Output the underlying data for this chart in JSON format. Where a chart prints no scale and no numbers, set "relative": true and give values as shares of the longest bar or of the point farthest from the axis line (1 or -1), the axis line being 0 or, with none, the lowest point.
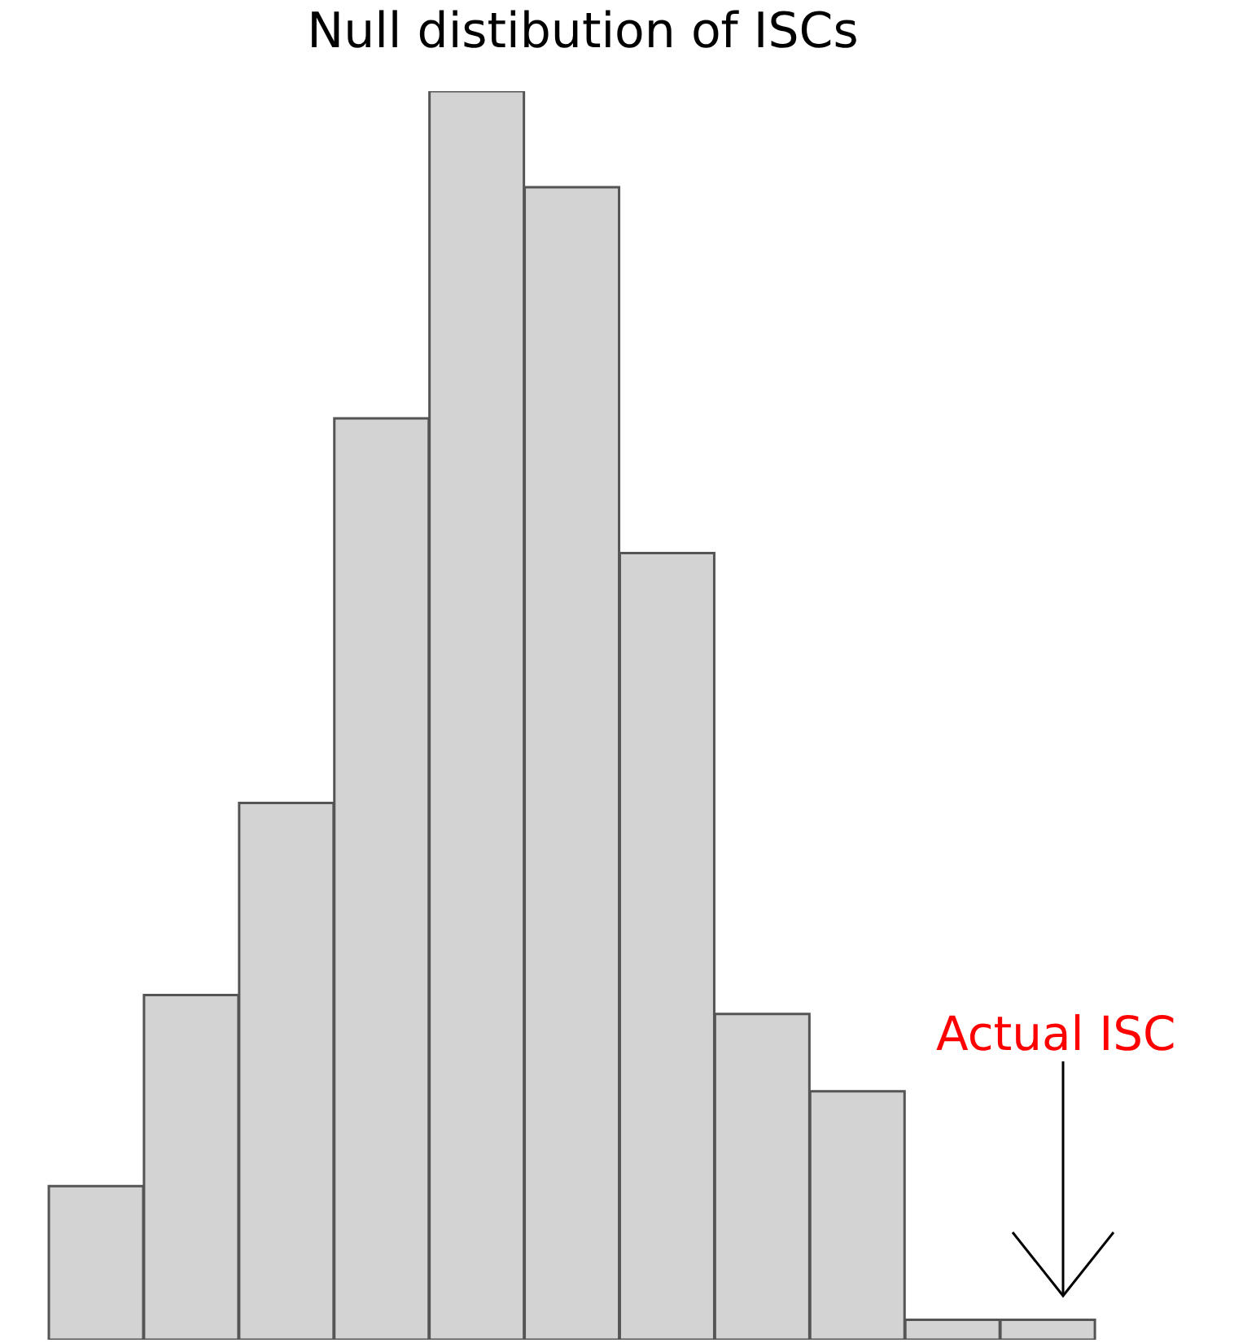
{
  "chart_data": {
    "type": "bar",
    "title": "Null distibution of ISCs",
    "relative": true,
    "categories": [
      null,
      null,
      null,
      null,
      null,
      null,
      null,
      null,
      null,
      null,
      null
    ],
    "values": [
      0.123,
      0.276,
      0.43,
      0.738,
      1,
      0.923,
      0.63,
      0.261,
      0.199,
      0.016,
      0.016
    ],
    "color": "#d3d3d3",
    "annotations": [
      "Actual ISC"
    ]
  }
}
